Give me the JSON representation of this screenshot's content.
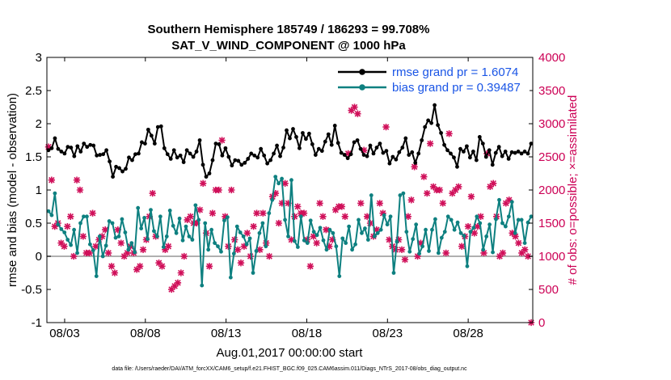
{
  "chart_data": {
    "type": "line",
    "title": "Southern Hemisphere 185749 / 186293 = 99.708%",
    "subtitle": "SAT_V_WIND_COMPONENT @ 1000 hPa",
    "xlabel": "Aug.01,2017 00:00:00 start",
    "ylabel": "rmse and bias (model - observation)",
    "y2label": "# of obs: o=possible; ×=assimilated",
    "footnote": "data file: /Users/raeder/DAI/ATM_forcXX/CAM6_setup/f.e21.FHIST_BGC.f09_025.CAM6assim.011/Diags_NTrS_2017-08/obs_diag_output.nc",
    "xticks": [
      "08/03",
      "08/08",
      "08/13",
      "08/18",
      "08/23",
      "08/28"
    ],
    "xtick_days": [
      3,
      8,
      13,
      18,
      23,
      28
    ],
    "xlim": [
      1.9,
      32.0
    ],
    "ylim": [
      -1,
      3
    ],
    "yticks": [
      "-1",
      "-0.5",
      "0",
      "0.5",
      "1",
      "1.5",
      "2",
      "2.5",
      "3"
    ],
    "y2lim": [
      0,
      4000
    ],
    "y2ticks": [
      "0",
      "500",
      "1000",
      "1500",
      "2000",
      "2500",
      "3000",
      "3500",
      "4000"
    ],
    "colors": {
      "rmse": "#000000",
      "bias": "#0e8080",
      "obs": "#d0105a",
      "zero": "#b0b0b0",
      "legend_text": "#1a55e6"
    },
    "series": [
      {
        "name": "rmse grand pr = 1.6074",
        "values": [
          1.6,
          1.63,
          1.78,
          1.62,
          1.58,
          1.55,
          1.65,
          1.64,
          1.51,
          1.66,
          1.58,
          1.7,
          1.65,
          1.68,
          1.67,
          1.52,
          1.53,
          1.54,
          1.6,
          1.43,
          1.2,
          1.35,
          1.33,
          1.28,
          1.32,
          1.49,
          1.45,
          1.54,
          1.55,
          1.72,
          1.7,
          1.91,
          1.82,
          1.7,
          1.95,
          1.96,
          1.63,
          1.54,
          1.47,
          1.6,
          1.49,
          1.52,
          1.42,
          1.6,
          1.55,
          1.5,
          1.58,
          1.75,
          1.38,
          1.2,
          1.25,
          1.45,
          1.7,
          1.69,
          1.52,
          1.63,
          1.5,
          1.37,
          1.45,
          1.44,
          1.38,
          1.41,
          1.47,
          1.55,
          1.52,
          1.49,
          1.62,
          1.52,
          1.4,
          1.45,
          1.55,
          1.67,
          1.51,
          1.64,
          1.9,
          1.78,
          1.92,
          1.8,
          1.63,
          1.86,
          1.77,
          1.85,
          1.69,
          1.53,
          1.62,
          1.59,
          1.73,
          1.84,
          1.68,
          1.97,
          1.71,
          1.56,
          1.53,
          1.48,
          1.54,
          1.72,
          1.75,
          1.62,
          1.53,
          1.51,
          1.67,
          1.55,
          1.64,
          1.7,
          1.56,
          1.59,
          1.4,
          1.5,
          1.46,
          1.57,
          1.64,
          1.78,
          1.53,
          1.57,
          1.41,
          1.55,
          1.75,
          1.95,
          2.05,
          2.01,
          2.28,
          1.98,
          1.86,
          1.68,
          1.6,
          1.55,
          1.49,
          1.35,
          1.62,
          1.58,
          1.66,
          1.49,
          1.58,
          1.45,
          1.8,
          1.7,
          1.5,
          1.6,
          1.38,
          1.56,
          1.65,
          1.51,
          1.58,
          1.47,
          1.57,
          1.56,
          1.58,
          1.55,
          1.58,
          1.55,
          1.7
        ]
      },
      {
        "name": "bias grand pr = 0.39487",
        "values": [
          0.68,
          0.62,
          0.95,
          0.48,
          0.41,
          0.36,
          0.25,
          0.17,
          0.4,
          0.05,
          0.5,
          0.6,
          0.6,
          0.18,
          0.09,
          -0.3,
          0.3,
          0.0,
          0.16,
          0.53,
          0.5,
          0.28,
          0.3,
          0.56,
          0.36,
          0.1,
          0.2,
          0.06,
          0.73,
          0.42,
          0.58,
          0.26,
          0.7,
          0.38,
          0.3,
          0.6,
          0.14,
          0.3,
          0.69,
          0.46,
          0.35,
          0.57,
          0.24,
          0.45,
          0.3,
          0.25,
          0.77,
          0.55,
          -0.44,
          0.5,
          0.1,
          0.4,
          0.2,
          0.15,
          0.07,
          0.54,
          0.59,
          -0.32,
          0.04,
          0.45,
          0.36,
          0.3,
          0.18,
          0.27,
          -0.25,
          0.08,
          0.35,
          0.5,
          0.15,
          0.65,
          0.85,
          1.2,
          1.1,
          1.17,
          0.55,
          0.3,
          1.15,
          0.23,
          0.14,
          0.6,
          0.24,
          0.2,
          0.54,
          0.37,
          0.32,
          0.43,
          0.24,
          0.1,
          0.4,
          0.35,
          0.15,
          -0.3,
          0.27,
          0.2,
          0.45,
          0.1,
          0.18,
          0.55,
          0.35,
          0.42,
          0.25,
          0.92,
          0.3,
          0.35,
          0.4,
          0.62,
          0.48,
          0.6,
          -0.25,
          0.22,
          0.92,
          0.95,
          0.37,
          0.07,
          0.26,
          0.48,
          0.04,
          0.15,
          0.4,
          0.08,
          0.4,
          0.56,
          0.05,
          0.28,
          0.37,
          0.6,
          0.55,
          0.4,
          0.51,
          0.35,
          0.31,
          -0.15,
          0.37,
          0.43,
          0.6,
          0.5,
          0.1,
          0.3,
          0.48,
          0.06,
          0.56,
          0.85,
          0.5,
          0.45,
          0.6,
          0.82,
          0.35,
          0.55,
          0.55,
          0.2,
          0.51,
          0.6
        ]
      }
    ],
    "obs_counts": [
      2650,
      2150,
      1450,
      1500,
      1200,
      1150,
      1450,
      1600,
      1000,
      2150,
      2000,
      1300,
      1050,
      1050,
      1650,
      1150,
      1250,
      1300,
      1400,
      1050,
      850,
      750,
      1400,
      1200,
      1000,
      1050,
      1150,
      1050,
      800,
      850,
      1100,
      1250,
      1600,
      1950,
      1300,
      900,
      850,
      1100,
      1150,
      500,
      550,
      600,
      750,
      1000,
      1550,
      1600,
      1500,
      1500,
      1700,
      2100,
      1350,
      850,
      1650,
      2000,
      2000,
      2750,
      1600,
      1150,
      2000,
      1250,
      1100,
      900,
      1150,
      1350,
      1000,
      1450,
      1650,
      1100,
      1650,
      1200,
      1000,
      1900,
      1950,
      1500,
      1800,
      2100,
      1800,
      1250,
      1600,
      1750,
      1650,
      1650,
      1250,
      850,
      1300,
      1200,
      1800,
      1600,
      1400,
      1150,
      1250,
      1700,
      1750,
      1750,
      1600,
      2550,
      3200,
      3250,
      3150,
      1800,
      2600,
      1600,
      1500,
      1300,
      1400,
      1800,
      1650,
      2950,
      1250,
      1150,
      1100,
      1250,
      1100,
      950,
      1600,
      1850,
      2350,
      1000,
      1200,
      2200,
      1950,
      2700,
      2050,
      2000,
      2000,
      1800,
      1050,
      2850,
      1950,
      2000,
      2050,
      1150,
      1300,
      1450,
      1900,
      1350,
      1450,
      1600,
      1050,
      2550,
      2050,
      2100,
      1600,
      1000,
      1050,
      1800,
      1850,
      1350,
      1300,
      1200,
      1050,
      1100,
      1000,
      0
    ],
    "legend_position": "top-right"
  }
}
